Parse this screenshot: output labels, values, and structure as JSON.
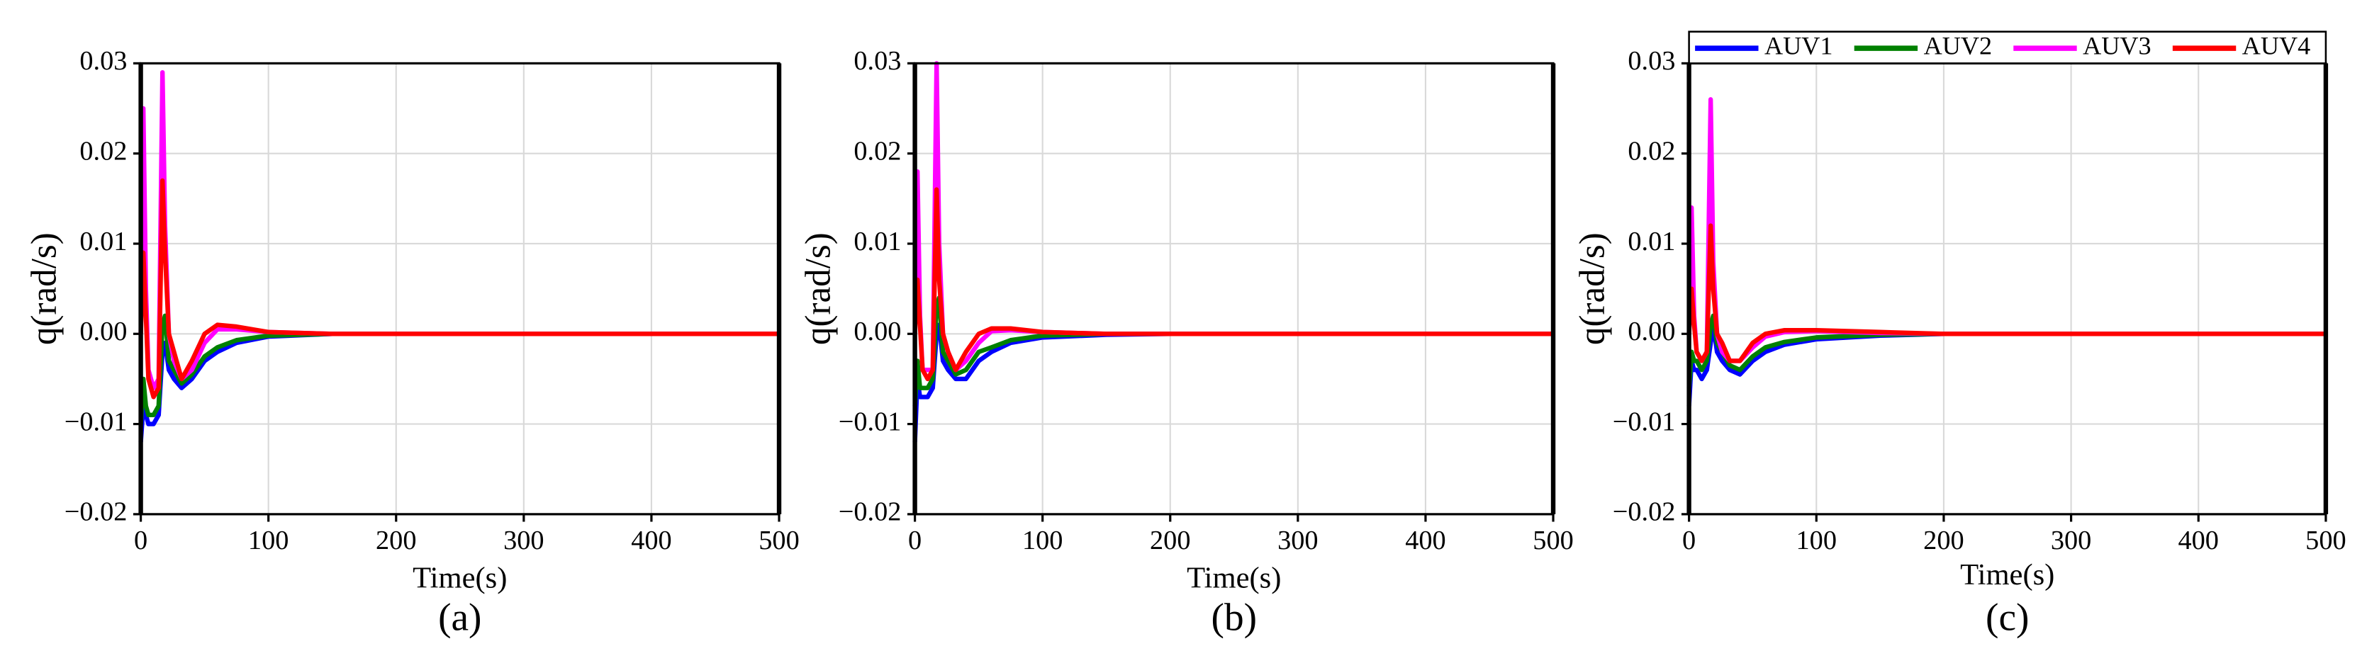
{
  "chart_data": [
    {
      "type": "line",
      "caption": "(a)",
      "xlabel": "Time(s)",
      "ylabel": "q(rad/s)",
      "x": [
        0,
        2,
        4,
        6,
        10,
        14,
        17,
        19,
        22,
        26,
        32,
        40,
        50,
        60,
        75,
        100,
        150,
        200,
        300,
        400,
        500
      ],
      "series": [
        {
          "name": "AUV1",
          "color": "#0000ff",
          "values": [
            -0.012,
            -0.008,
            -0.009,
            -0.01,
            -0.01,
            -0.009,
            -0.002,
            -0.001,
            -0.004,
            -0.005,
            -0.006,
            -0.005,
            -0.003,
            -0.002,
            -0.001,
            -0.0003,
            0,
            0,
            0,
            0,
            0
          ]
        },
        {
          "name": "AUV2",
          "color": "#008000",
          "values": [
            -0.01,
            -0.005,
            -0.008,
            -0.009,
            -0.009,
            -0.008,
            0.001,
            0.002,
            -0.003,
            -0.004,
            -0.0055,
            -0.0045,
            -0.0025,
            -0.0015,
            -0.0007,
            -0.0002,
            0,
            0,
            0,
            0,
            0
          ]
        },
        {
          "name": "AUV3",
          "color": "#ff00ff",
          "values": [
            0,
            0.025,
            0.005,
            -0.004,
            -0.006,
            -0.005,
            0.029,
            0.012,
            0.0,
            -0.003,
            -0.005,
            -0.004,
            -0.001,
            0.0005,
            0.0005,
            0.0002,
            0,
            0,
            0,
            0,
            0
          ]
        },
        {
          "name": "AUV4",
          "color": "#ff0000",
          "values": [
            0,
            0.009,
            0.002,
            -0.005,
            -0.007,
            -0.006,
            0.017,
            0.009,
            0.0,
            -0.002,
            -0.005,
            -0.003,
            0,
            0.001,
            0.0008,
            0.0002,
            0,
            0,
            0,
            0,
            0
          ]
        }
      ],
      "xlim": [
        0,
        500
      ],
      "xticks": [
        0,
        100,
        200,
        300,
        400,
        500
      ],
      "ylim": [
        -0.02,
        0.03
      ],
      "yticks": [
        {
          "value": -0.02,
          "label": "−0.02"
        },
        {
          "value": -0.01,
          "label": "−0.01"
        },
        {
          "value": 0,
          "label": "0.00"
        },
        {
          "value": 0.01,
          "label": "0.01"
        },
        {
          "value": 0.02,
          "label": "0.02"
        },
        {
          "value": 0.03,
          "label": "0.03"
        }
      ],
      "grid": true
    },
    {
      "type": "line",
      "caption": "(b)",
      "xlabel": "Time(s)",
      "ylabel": "q(rad/s)",
      "x": [
        0,
        2,
        4,
        6,
        10,
        14,
        17,
        19,
        22,
        26,
        32,
        40,
        50,
        60,
        75,
        100,
        150,
        200,
        300,
        400,
        500
      ],
      "series": [
        {
          "name": "AUV1",
          "color": "#0000ff",
          "values": [
            -0.012,
            -0.005,
            -0.007,
            -0.007,
            -0.007,
            -0.006,
            0.0,
            0.001,
            -0.003,
            -0.004,
            -0.005,
            -0.005,
            -0.003,
            -0.002,
            -0.001,
            -0.0004,
            -0.0001,
            0,
            0,
            0,
            0
          ]
        },
        {
          "name": "AUV2",
          "color": "#008000",
          "values": [
            -0.008,
            -0.003,
            -0.006,
            -0.006,
            -0.006,
            -0.005,
            0.003,
            0.004,
            -0.002,
            -0.003,
            -0.0045,
            -0.004,
            -0.002,
            -0.0015,
            -0.0007,
            -0.0002,
            0,
            0,
            0,
            0,
            0
          ]
        },
        {
          "name": "AUV3",
          "color": "#ff00ff",
          "values": [
            0,
            0.018,
            0.002,
            -0.004,
            -0.004,
            -0.004,
            0.03,
            0.01,
            0.0,
            -0.002,
            -0.004,
            -0.003,
            -0.001,
            0.0003,
            0.0004,
            0.0002,
            0,
            0,
            0,
            0,
            0
          ]
        },
        {
          "name": "AUV4",
          "color": "#ff0000",
          "values": [
            0,
            0.006,
            0.001,
            -0.004,
            -0.005,
            -0.004,
            0.016,
            0.006,
            0.0,
            -0.002,
            -0.004,
            -0.002,
            0,
            0.0006,
            0.0006,
            0.0002,
            0,
            0,
            0,
            0,
            0
          ]
        }
      ],
      "xlim": [
        0,
        500
      ],
      "xticks": [
        0,
        100,
        200,
        300,
        400,
        500
      ],
      "ylim": [
        -0.02,
        0.03
      ],
      "yticks": [
        {
          "value": -0.02,
          "label": "−0.02"
        },
        {
          "value": -0.01,
          "label": "−0.01"
        },
        {
          "value": 0,
          "label": "0.00"
        },
        {
          "value": 0.01,
          "label": "0.01"
        },
        {
          "value": 0.02,
          "label": "0.02"
        },
        {
          "value": 0.03,
          "label": "0.03"
        }
      ],
      "grid": true
    },
    {
      "type": "line",
      "caption": "(c)",
      "xlabel": "Time(s)",
      "ylabel": "q(rad/s)",
      "legend": "top",
      "x": [
        0,
        2,
        4,
        6,
        10,
        14,
        17,
        19,
        22,
        26,
        32,
        40,
        50,
        60,
        75,
        100,
        150,
        200,
        300,
        400,
        500
      ],
      "series": [
        {
          "name": "AUV1",
          "color": "#0000ff",
          "values": [
            -0.008,
            -0.003,
            -0.004,
            -0.004,
            -0.005,
            -0.004,
            -0.001,
            0.001,
            -0.002,
            -0.003,
            -0.004,
            -0.0045,
            -0.003,
            -0.002,
            -0.0012,
            -0.0006,
            -0.0002,
            0,
            0,
            0,
            0
          ]
        },
        {
          "name": "AUV2",
          "color": "#008000",
          "values": [
            -0.006,
            -0.002,
            -0.003,
            -0.003,
            -0.004,
            -0.003,
            0.001,
            0.002,
            -0.001,
            -0.002,
            -0.0035,
            -0.004,
            -0.0025,
            -0.0015,
            -0.0009,
            -0.0004,
            -0.0001,
            0,
            0,
            0,
            0
          ]
        },
        {
          "name": "AUV3",
          "color": "#ff00ff",
          "values": [
            0,
            0.014,
            0.002,
            -0.002,
            -0.003,
            -0.002,
            0.026,
            0.008,
            0,
            -0.002,
            -0.003,
            -0.003,
            -0.0015,
            -0.0003,
            0.0002,
            0.0003,
            0.0001,
            0,
            0,
            0,
            0
          ]
        },
        {
          "name": "AUV4",
          "color": "#ff0000",
          "values": [
            0,
            0.005,
            0.001,
            -0.002,
            -0.003,
            -0.002,
            0.012,
            0.005,
            0,
            -0.001,
            -0.003,
            -0.003,
            -0.001,
            0,
            0.0004,
            0.0004,
            0.0002,
            0,
            0,
            0,
            0
          ]
        }
      ],
      "xlim": [
        0,
        500
      ],
      "xticks": [
        0,
        100,
        200,
        300,
        400,
        500
      ],
      "ylim": [
        -0.02,
        0.03
      ],
      "yticks": [
        {
          "value": -0.02,
          "label": "−0.02"
        },
        {
          "value": -0.01,
          "label": "−0.01"
        },
        {
          "value": 0,
          "label": "0.00"
        },
        {
          "value": 0.01,
          "label": "0.01"
        },
        {
          "value": 0.02,
          "label": "0.02"
        },
        {
          "value": 0.03,
          "label": "0.03"
        }
      ],
      "grid": true
    }
  ]
}
